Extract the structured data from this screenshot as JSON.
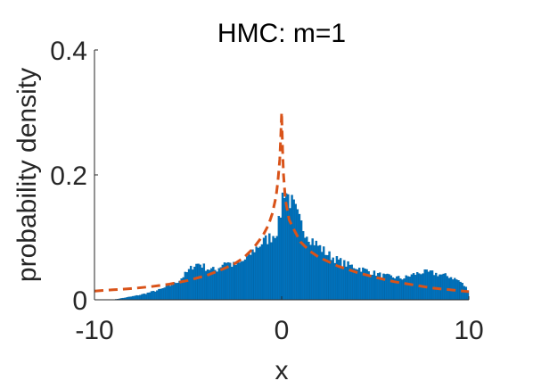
{
  "chart_data": {
    "type": "bar",
    "title": "HMC: m=1",
    "xlabel": "x",
    "ylabel": "probability density",
    "xlim": [
      -10,
      10
    ],
    "ylim": [
      0,
      0.4
    ],
    "xticks": [
      -10,
      0,
      10
    ],
    "xtick_labels": [
      "-10",
      "0",
      "10"
    ],
    "yticks": [
      0,
      0.2,
      0.4
    ],
    "ytick_labels": [
      "0",
      "0.2",
      "0.4"
    ],
    "grid": false,
    "histogram": {
      "bin_width": 0.1,
      "color": "#0072BD",
      "x_start": -10,
      "x_end": 10,
      "knots": [
        [
          -10.0,
          0.0
        ],
        [
          -9.0,
          0.0
        ],
        [
          -8.2,
          0.004
        ],
        [
          -7.5,
          0.008
        ],
        [
          -7.0,
          0.012
        ],
        [
          -6.5,
          0.016
        ],
        [
          -6.0,
          0.022
        ],
        [
          -5.5,
          0.03
        ],
        [
          -5.0,
          0.045
        ],
        [
          -4.7,
          0.055
        ],
        [
          -4.4,
          0.058
        ],
        [
          -4.0,
          0.05
        ],
        [
          -3.5,
          0.047
        ],
        [
          -3.0,
          0.062
        ],
        [
          -2.6,
          0.055
        ],
        [
          -2.2,
          0.058
        ],
        [
          -1.8,
          0.068
        ],
        [
          -1.4,
          0.082
        ],
        [
          -1.0,
          0.092
        ],
        [
          -0.6,
          0.1
        ],
        [
          -0.3,
          0.108
        ],
        [
          -0.1,
          0.125
        ],
        [
          0.0,
          0.155
        ],
        [
          0.1,
          0.178
        ],
        [
          0.2,
          0.175
        ],
        [
          0.4,
          0.162
        ],
        [
          0.7,
          0.145
        ],
        [
          1.0,
          0.122
        ],
        [
          1.5,
          0.1
        ],
        [
          2.0,
          0.085
        ],
        [
          2.5,
          0.072
        ],
        [
          3.0,
          0.063
        ],
        [
          3.5,
          0.056
        ],
        [
          4.0,
          0.052
        ],
        [
          4.5,
          0.047
        ],
        [
          5.0,
          0.042
        ],
        [
          5.5,
          0.038
        ],
        [
          6.0,
          0.036
        ],
        [
          6.5,
          0.034
        ],
        [
          7.0,
          0.04
        ],
        [
          7.5,
          0.044
        ],
        [
          8.0,
          0.043
        ],
        [
          8.5,
          0.04
        ],
        [
          9.0,
          0.037
        ],
        [
          9.5,
          0.03
        ],
        [
          10.0,
          0.015
        ]
      ]
    },
    "series": [
      {
        "type": "line",
        "style": "dashed",
        "color": "#D95319",
        "x": [
          -10,
          -9,
          -8,
          -7,
          -6,
          -5,
          -4,
          -3,
          -2.5,
          -2,
          -1.5,
          -1,
          -0.7,
          -0.5,
          -0.3,
          -0.2,
          -0.1,
          -0.05,
          0,
          0.05,
          0.1,
          0.2,
          0.4,
          0.7,
          1,
          1.5,
          2,
          3,
          4,
          5,
          6,
          7,
          8,
          9,
          10
        ],
        "y": [
          0.014,
          0.016,
          0.018,
          0.021,
          0.025,
          0.031,
          0.039,
          0.051,
          0.058,
          0.068,
          0.083,
          0.103,
          0.12,
          0.138,
          0.165,
          0.19,
          0.225,
          0.26,
          0.3,
          0.24,
          0.2,
          0.16,
          0.128,
          0.11,
          0.093,
          0.078,
          0.068,
          0.054,
          0.044,
          0.036,
          0.029,
          0.024,
          0.019,
          0.016,
          0.013
        ]
      }
    ]
  }
}
